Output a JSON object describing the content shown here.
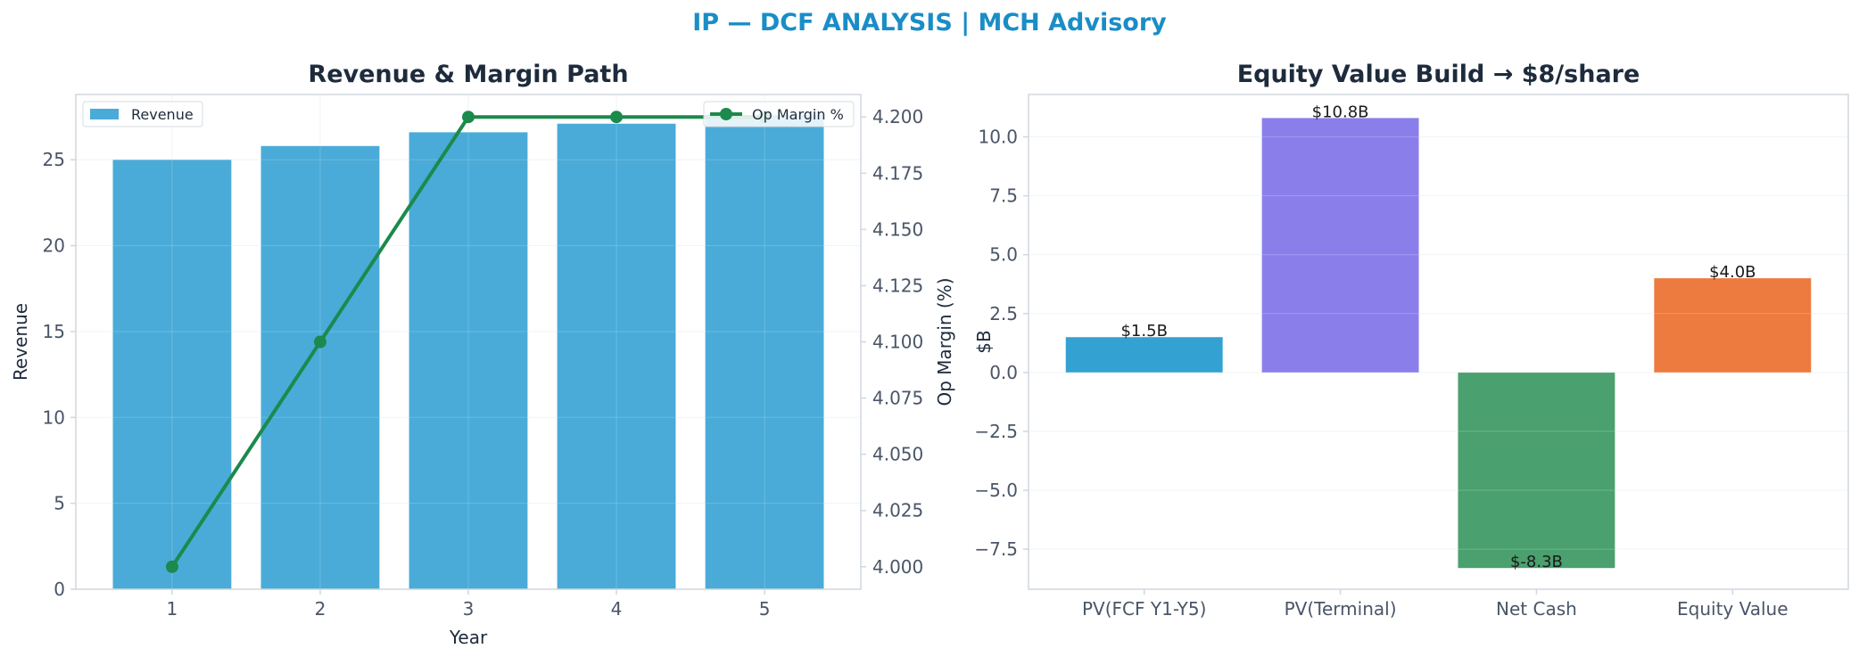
{
  "page": {
    "suptitle": "IP — DCF ANALYSIS | MCH Advisory"
  },
  "colors": {
    "suptitle": "#1a8dc6",
    "title": "#1e2b3c",
    "axis_text": "#4a5568",
    "label_text": "#1e2b3c",
    "spine": "#d0d7de",
    "grid": "#eef1f4",
    "revenue_bar": "#4aabd8",
    "margin_line": "#1b8a4c",
    "wf_pv_fcf": "#33a2d2",
    "wf_pv_terminal": "#8a7fea",
    "wf_net_cash": "#4aa06e",
    "wf_equity": "#ed7a3e"
  },
  "chart_data": [
    {
      "id": "revenue-margin",
      "type": "bar",
      "title": "Revenue & Margin Path",
      "xlabel": "Year",
      "ylabel": "Revenue",
      "y2label": "Op Margin (%)",
      "categories": [
        "1",
        "2",
        "3",
        "4",
        "5"
      ],
      "series": [
        {
          "name": "Revenue",
          "type": "bar",
          "axis": "left",
          "values": [
            25.0,
            25.8,
            26.6,
            27.1,
            27.6
          ]
        },
        {
          "name": "Op Margin %",
          "type": "line",
          "axis": "right",
          "values": [
            4.0,
            4.1,
            4.2,
            4.2,
            4.2
          ]
        }
      ],
      "ylim": [
        0,
        28.8
      ],
      "yticks": [
        0,
        5,
        10,
        15,
        20,
        25
      ],
      "y2lim": [
        3.99,
        4.21
      ],
      "y2ticks": [
        4.0,
        4.025,
        4.05,
        4.075,
        4.1,
        4.125,
        4.15,
        4.175,
        4.2
      ],
      "y2tick_labels": [
        "4.000",
        "4.025",
        "4.050",
        "4.075",
        "4.100",
        "4.125",
        "4.150",
        "4.175",
        "4.200"
      ],
      "legend": {
        "left": "top-left",
        "right": "top-right"
      },
      "grid": true
    },
    {
      "id": "equity-build",
      "type": "bar",
      "title": "Equity Value Build → $8/share",
      "ylabel": "$B",
      "categories": [
        "PV(FCF Y1-Y5)",
        "PV(Terminal)",
        "Net Cash",
        "Equity Value"
      ],
      "values": [
        1.5,
        10.8,
        -8.3,
        4.0
      ],
      "labels": [
        "$1.5B",
        "$10.8B",
        "$-8.3B",
        "$4.0B"
      ],
      "ylim": [
        -9.2,
        11.8
      ],
      "yticks": [
        -7.5,
        -5.0,
        -2.5,
        0.0,
        2.5,
        5.0,
        7.5,
        10.0
      ],
      "ytick_labels": [
        "−7.5",
        "−5.0",
        "−2.5",
        "0.0",
        "2.5",
        "5.0",
        "7.5",
        "10.0"
      ],
      "grid": true
    }
  ]
}
